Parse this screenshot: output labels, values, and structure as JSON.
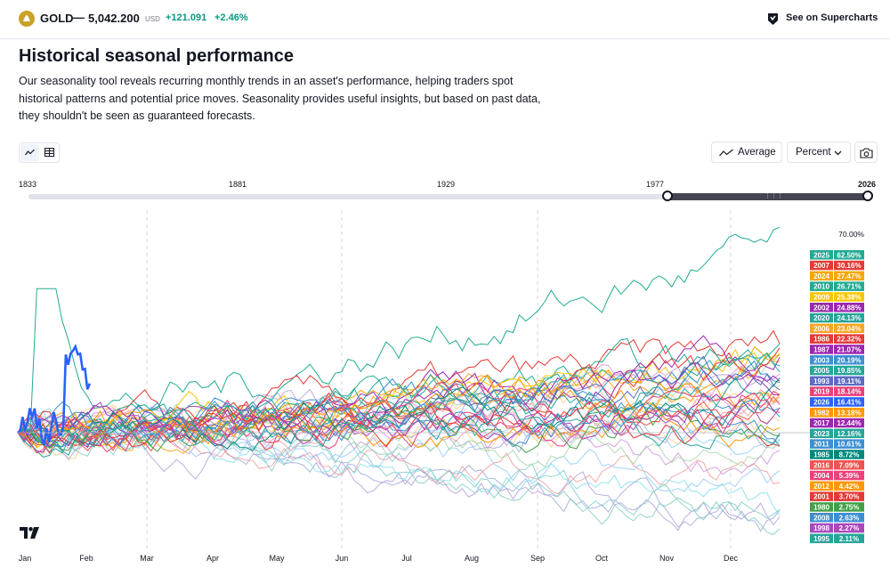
{
  "header": {
    "symbol": "GOLD",
    "separator": "—",
    "price": "5,042.200",
    "currency": "USD",
    "change": "+121.091",
    "change_percent": "+2.46%",
    "supercharts_label": "See on Supercharts"
  },
  "section": {
    "title": "Historical seasonal performance",
    "description": "Our seasonality tool reveals recurring monthly trends in an asset's performance, helping traders spot historical patterns and potential price moves. Seasonality provides useful insights, but based on past data, they shouldn't be seen as guaranteed forecasts."
  },
  "controls": {
    "average_label": "Average",
    "unit_label": "Percent"
  },
  "range": {
    "ticks": [
      "1833",
      "1881",
      "1929",
      "1977",
      "2026"
    ],
    "selected_start": 1977,
    "selected_end": 2026
  },
  "colors": {
    "accent_green": "#089981",
    "highlight_line": "#2962ff"
  },
  "chart_data": {
    "type": "line",
    "title": "Historical seasonal performance",
    "x_categories": [
      "Jan",
      "Feb",
      "Mar",
      "Apr",
      "May",
      "Jun",
      "Jul",
      "Aug",
      "Sep",
      "Oct",
      "Nov",
      "Dec"
    ],
    "y_unit": "%",
    "ylim": [
      -35,
      70
    ],
    "top_axis_label": "70.00%",
    "series": [
      {
        "year": "2025",
        "final": "62.50%",
        "color": "#22ab94"
      },
      {
        "year": "2007",
        "final": "30.16%",
        "color": "#e53935"
      },
      {
        "year": "2024",
        "final": "27.47%",
        "color": "#f7a600"
      },
      {
        "year": "2010",
        "final": "26.71%",
        "color": "#22ab94"
      },
      {
        "year": "2009",
        "final": "25.38%",
        "color": "#f7c600"
      },
      {
        "year": "2002",
        "final": "24.88%",
        "color": "#9c27b0"
      },
      {
        "year": "2020",
        "final": "24.13%",
        "color": "#26a69a"
      },
      {
        "year": "2006",
        "final": "23.04%",
        "color": "#f5a623"
      },
      {
        "year": "1986",
        "final": "22.32%",
        "color": "#e53935"
      },
      {
        "year": "1987",
        "final": "21.07%",
        "color": "#9c27b0"
      },
      {
        "year": "2003",
        "final": "20.19%",
        "color": "#3d8fd1"
      },
      {
        "year": "2005",
        "final": "19.85%",
        "color": "#26a69a"
      },
      {
        "year": "1993",
        "final": "19.11%",
        "color": "#5c6bc0"
      },
      {
        "year": "2019",
        "final": "18.14%",
        "color": "#ec407a"
      },
      {
        "year": "2026",
        "final": "16.41%",
        "color": "#2962ff"
      },
      {
        "year": "1982",
        "final": "13.18%",
        "color": "#ff9800"
      },
      {
        "year": "2017",
        "final": "12.44%",
        "color": "#9c27b0"
      },
      {
        "year": "2023",
        "final": "12.16%",
        "color": "#26a69a"
      },
      {
        "year": "2011",
        "final": "10.61%",
        "color": "#3d8fd1"
      },
      {
        "year": "1985",
        "final": "8.72%",
        "color": "#00897b"
      },
      {
        "year": "2016",
        "final": "7.09%",
        "color": "#ef5350"
      },
      {
        "year": "2004",
        "final": "5.39%",
        "color": "#ec407a"
      },
      {
        "year": "2012",
        "final": "4.42%",
        "color": "#ff9800"
      },
      {
        "year": "2001",
        "final": "3.70%",
        "color": "#e53935"
      },
      {
        "year": "1980",
        "final": "2.75%",
        "color": "#43a047"
      },
      {
        "year": "2008",
        "final": "2.63%",
        "color": "#3d8fd1"
      },
      {
        "year": "1998",
        "final": "2.27%",
        "color": "#ab47bc"
      },
      {
        "year": "1995",
        "final": "2.11%",
        "color": "#26a69a"
      }
    ],
    "background_lines": 18
  }
}
